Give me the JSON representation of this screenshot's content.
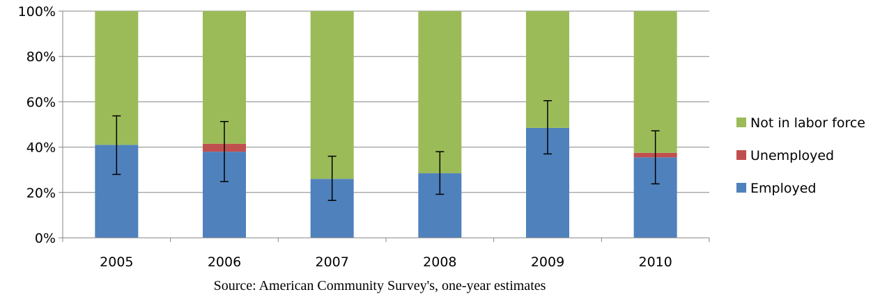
{
  "chart_data": {
    "type": "bar",
    "stacked": true,
    "categories": [
      "2005",
      "2006",
      "2007",
      "2008",
      "2009",
      "2010"
    ],
    "series": [
      {
        "name": "Employed",
        "color": "#4F81BD",
        "values": [
          41,
          38,
          26,
          28.5,
          48.5,
          35.5
        ]
      },
      {
        "name": "Unemployed",
        "color": "#C0504D",
        "values": [
          0,
          3.5,
          0,
          0,
          0,
          2
        ]
      },
      {
        "name": "Not in labor force",
        "color": "#9BBB59",
        "values": [
          59,
          58.5,
          74,
          71.5,
          51.5,
          62.5
        ]
      }
    ],
    "error_bars": {
      "center": [
        41,
        38,
        26,
        28.5,
        48.5,
        35.5
      ],
      "low": [
        28,
        24.8,
        16.5,
        19.2,
        37,
        23.8
      ],
      "high": [
        53.8,
        51.3,
        36,
        38,
        60.5,
        47.2
      ]
    },
    "y_ticks": [
      "0%",
      "20%",
      "40%",
      "60%",
      "80%",
      "100%"
    ],
    "ylim": [
      0,
      100
    ],
    "grid": true,
    "legend_position": "right",
    "legend_order": [
      "Not in labor force",
      "Unemployed",
      "Employed"
    ],
    "source": "Source: American Community Survey's, one-year estimates"
  }
}
